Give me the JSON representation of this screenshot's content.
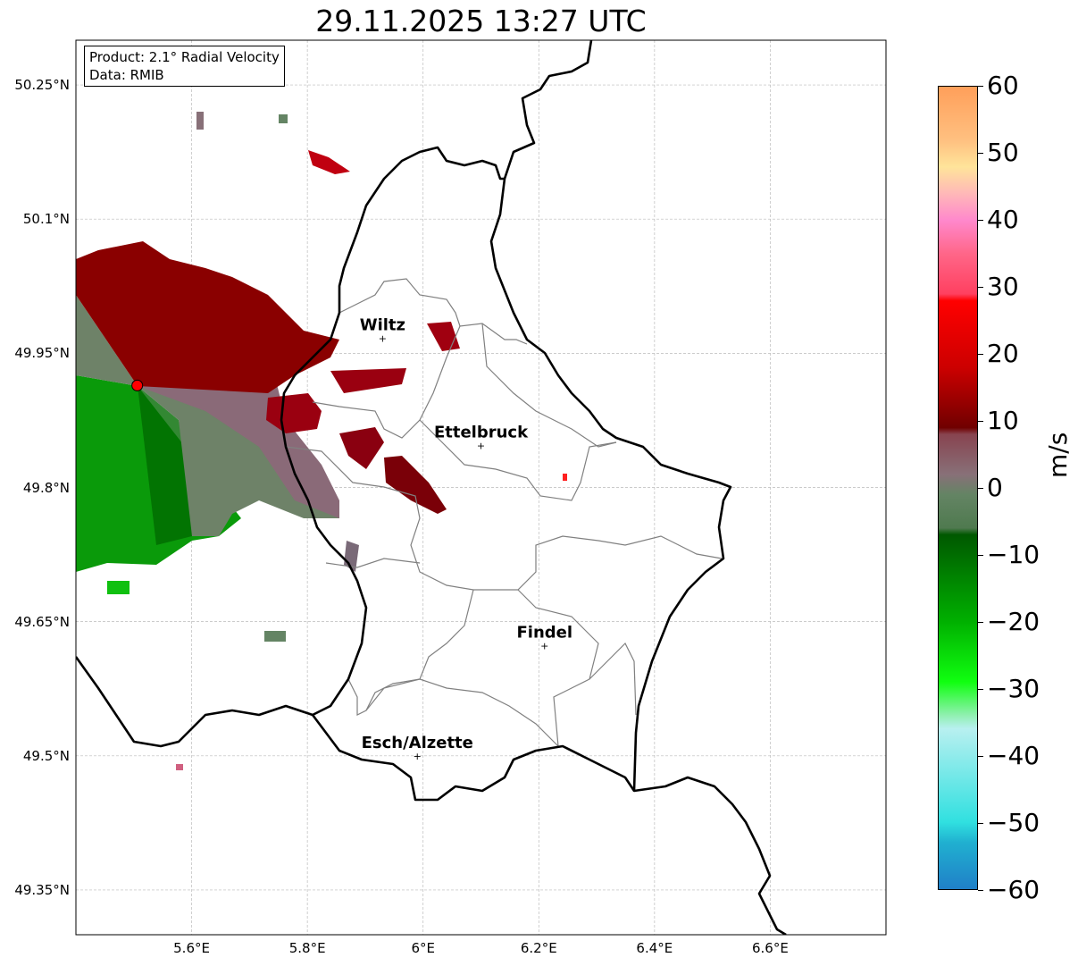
{
  "title": "29.11.2025 13:27 UTC",
  "info": {
    "product": "Product: 2.1° Radial Velocity",
    "data": "Data: RMIB"
  },
  "map_extent": {
    "lon": [
      5.4,
      6.8
    ],
    "lat": [
      49.3,
      50.3
    ]
  },
  "lon_ticks": [
    {
      "value": 5.6,
      "label": "5.6°E"
    },
    {
      "value": 5.8,
      "label": "5.8°E"
    },
    {
      "value": 6.0,
      "label": "6°E"
    },
    {
      "value": 6.2,
      "label": "6.2°E"
    },
    {
      "value": 6.4,
      "label": "6.4°E"
    },
    {
      "value": 6.6,
      "label": "6.6°E"
    }
  ],
  "lat_ticks": [
    {
      "value": 50.25,
      "label": "50.25°N"
    },
    {
      "value": 50.1,
      "label": "50.1°N"
    },
    {
      "value": 49.95,
      "label": "49.95°N"
    },
    {
      "value": 49.8,
      "label": "49.8°N"
    },
    {
      "value": 49.65,
      "label": "49.65°N"
    },
    {
      "value": 49.5,
      "label": "49.5°N"
    },
    {
      "value": 49.35,
      "label": "49.35°N"
    }
  ],
  "cities": [
    {
      "name": "Wiltz",
      "lon": 5.93,
      "lat": 49.967
    },
    {
      "name": "Ettelbruck",
      "lon": 6.1,
      "lat": 49.847
    },
    {
      "name": "Findel",
      "lon": 6.21,
      "lat": 49.623
    },
    {
      "name": "Esch/Alzette",
      "lon": 5.99,
      "lat": 49.5
    }
  ],
  "radar_site": {
    "lon": 5.506,
    "lat": 49.914,
    "color": "#ff0000"
  },
  "colorbar": {
    "unit": "m/s",
    "range": [
      -60,
      60
    ],
    "ticks": [
      {
        "value": 60,
        "label": "60"
      },
      {
        "value": 50,
        "label": "50"
      },
      {
        "value": 40,
        "label": "40"
      },
      {
        "value": 30,
        "label": "30"
      },
      {
        "value": 20,
        "label": "20"
      },
      {
        "value": 10,
        "label": "10"
      },
      {
        "value": 0,
        "label": "0"
      },
      {
        "value": -10,
        "label": "−10"
      },
      {
        "value": -20,
        "label": "−20"
      },
      {
        "value": -30,
        "label": "−30"
      },
      {
        "value": -40,
        "label": "−40"
      },
      {
        "value": -50,
        "label": "−50"
      },
      {
        "value": -60,
        "label": "−60"
      }
    ],
    "stops": [
      {
        "v": 60,
        "c": "#ff9f5a"
      },
      {
        "v": 52,
        "c": "#ffc080"
      },
      {
        "v": 48,
        "c": "#ffe49a"
      },
      {
        "v": 44,
        "c": "#ffb8b8"
      },
      {
        "v": 40,
        "c": "#ff88cc"
      },
      {
        "v": 35,
        "c": "#ff6688"
      },
      {
        "v": 29,
        "c": "#ff4060"
      },
      {
        "v": 28,
        "c": "#ff0000"
      },
      {
        "v": 18,
        "c": "#cc0000"
      },
      {
        "v": 9,
        "c": "#700000"
      },
      {
        "v": 8,
        "c": "#884450"
      },
      {
        "v": 2,
        "c": "#887078"
      },
      {
        "v": -1,
        "c": "#648464"
      },
      {
        "v": -6,
        "c": "#4f7a4f"
      },
      {
        "v": -7,
        "c": "#005800"
      },
      {
        "v": -20,
        "c": "#00b000"
      },
      {
        "v": -29,
        "c": "#10ff10"
      },
      {
        "v": -34,
        "c": "#90f0b0"
      },
      {
        "v": -36,
        "c": "#b8f0f0"
      },
      {
        "v": -50,
        "c": "#30e0e0"
      },
      {
        "v": -53,
        "c": "#20b0d0"
      },
      {
        "v": -60,
        "c": "#2080c8"
      }
    ]
  }
}
